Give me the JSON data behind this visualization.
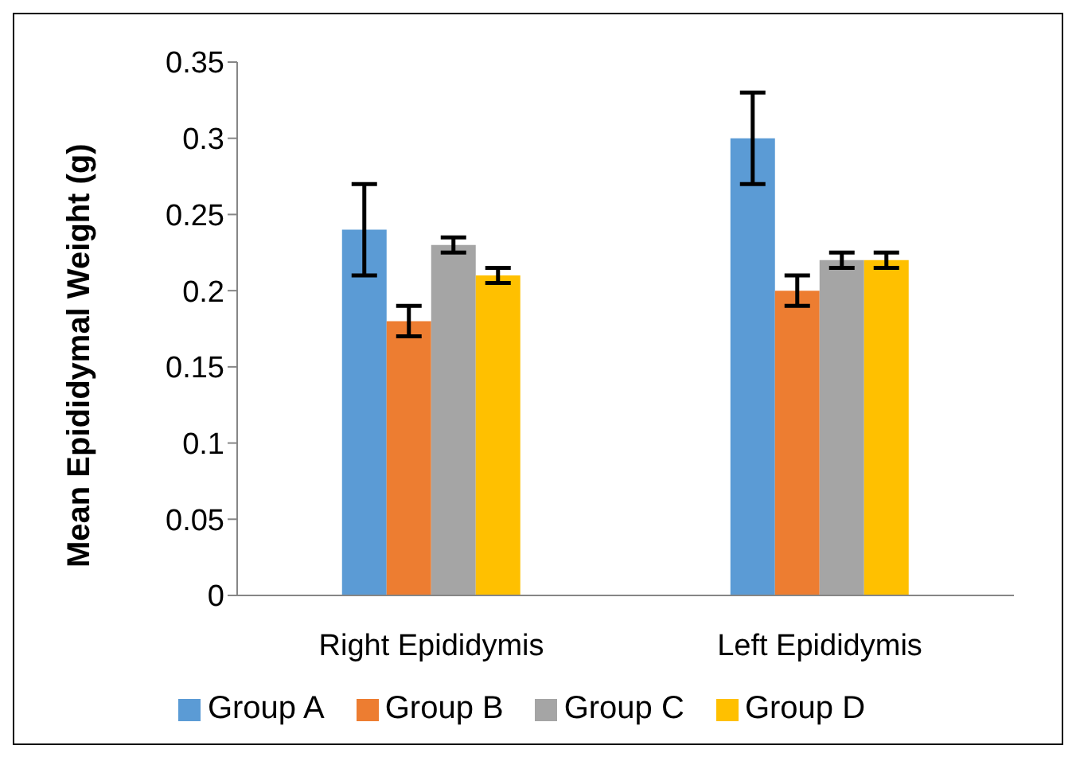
{
  "chart_data": {
    "type": "bar",
    "ylabel": "Mean Epididymal Weight  (g)",
    "categories": [
      "Right Epididymis",
      "Left Epididymis"
    ],
    "series": [
      {
        "name": "Group A",
        "color": "#5b9bd5",
        "values": [
          0.24,
          0.3
        ],
        "errors": [
          0.03,
          0.03
        ]
      },
      {
        "name": "Group B",
        "color": "#ed7d31",
        "values": [
          0.18,
          0.2
        ],
        "errors": [
          0.01,
          0.01
        ]
      },
      {
        "name": "Group C",
        "color": "#a5a5a5",
        "values": [
          0.23,
          0.22
        ],
        "errors": [
          0.005,
          0.005
        ]
      },
      {
        "name": "Group D",
        "color": "#ffc000",
        "values": [
          0.21,
          0.22
        ],
        "errors": [
          0.005,
          0.005
        ]
      }
    ],
    "ylim": [
      0,
      0.35
    ],
    "yticks": [
      0,
      0.05,
      0.1,
      0.15,
      0.2,
      0.25,
      0.3,
      0.35
    ],
    "grid": false,
    "legend": "bottom"
  }
}
